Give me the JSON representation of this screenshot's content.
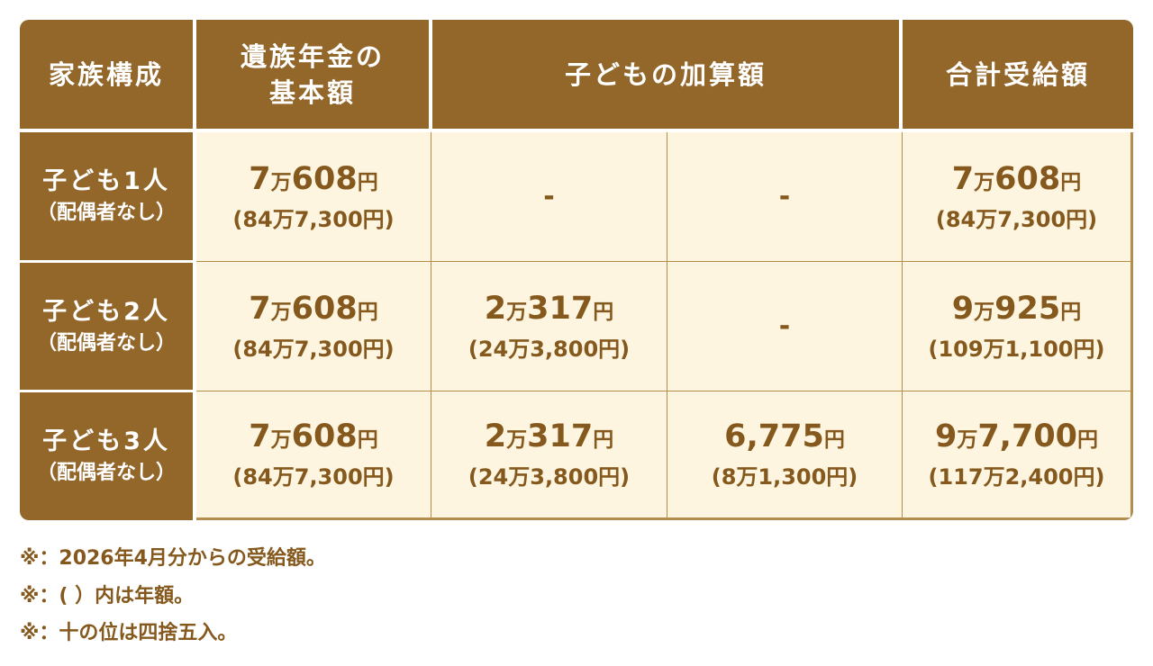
{
  "table": {
    "header": [
      [
        "家族構成"
      ],
      [
        "遺族年金の",
        "基本額"
      ],
      [
        "子どもの加算額"
      ],
      [
        "合計受給額"
      ]
    ],
    "rows": [
      {
        "label": [
          "子ども1人",
          "（配偶者なし）"
        ],
        "cells": [
          {
            "main": [
              "7",
              "万",
              "608",
              "円"
            ],
            "sub": "(84万7,300円)"
          },
          {
            "text": "-"
          },
          {
            "text": "-"
          },
          {
            "main": [
              "7",
              "万",
              "608",
              "円"
            ],
            "sub": "(84万7,300円)"
          }
        ]
      },
      {
        "label": [
          "子ども2人",
          "（配偶者なし）"
        ],
        "cells": [
          {
            "main": [
              "7",
              "万",
              "608",
              "円"
            ],
            "sub": "(84万7,300円)"
          },
          {
            "main": [
              "2",
              "万",
              "317",
              "円"
            ],
            "sub": "(24万3,800円)"
          },
          {
            "text": "-"
          },
          {
            "main": [
              "9",
              "万",
              "925",
              "円"
            ],
            "sub": "(109万1,100円)"
          }
        ]
      },
      {
        "label": [
          "子ども3人",
          "（配偶者なし）"
        ],
        "cells": [
          {
            "main": [
              "7",
              "万",
              "608",
              "円"
            ],
            "sub": "(84万7,300円)"
          },
          {
            "main": [
              "2",
              "万",
              "317",
              "円"
            ],
            "sub": "(24万3,800円)"
          },
          {
            "main": [
              "6,775",
              "円"
            ],
            "sub": "(8万1,300円)"
          },
          {
            "main": [
              "9",
              "万",
              "7,700",
              "円"
            ],
            "sub": "(117万2,400円)"
          }
        ]
      }
    ]
  },
  "notes": [
    "※：2026年4月分からの受給額。",
    "※：( ）内は年額。",
    "※：十の位は四捨五入。"
  ]
}
